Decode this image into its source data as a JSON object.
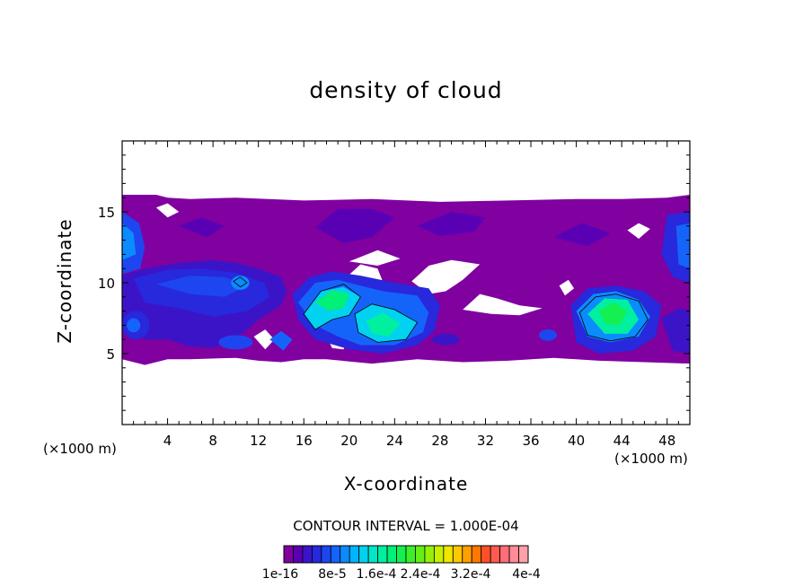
{
  "chart_data": {
    "type": "heatmap",
    "title": "density of cloud",
    "xlabel": "X-coordinate",
    "ylabel": "Z-coordinate",
    "x_unit": "(×1000 m)",
    "xlim": [
      0,
      50
    ],
    "ylim": [
      0,
      20
    ],
    "x_ticks": [
      4,
      8,
      12,
      16,
      20,
      24,
      28,
      32,
      36,
      40,
      44,
      48
    ],
    "y_ticks": [
      5,
      10,
      15
    ],
    "contour_interval_text": "CONTOUR INTERVAL = 1.000E-04",
    "colorbar": {
      "labels": [
        "1e-16",
        "8e-5",
        "1.6e-4",
        "2.4e-4",
        "3.2e-4",
        "4e-4"
      ],
      "range": [
        1e-16,
        0.0004
      ],
      "colors": [
        "#8000a0",
        "#5a00b4",
        "#3c14c8",
        "#2828dc",
        "#1e46f0",
        "#1464fa",
        "#0a8cff",
        "#00b4ff",
        "#00d2f0",
        "#00e6c8",
        "#00f0a0",
        "#00f078",
        "#14f050",
        "#3cf028",
        "#64f014",
        "#96f00a",
        "#c8f000",
        "#f0e600",
        "#ffc800",
        "#ffa000",
        "#ff7800",
        "#ff5028",
        "#ff5a50",
        "#ff6e78",
        "#ff8c96",
        "#ffa0aa"
      ]
    },
    "note_visible": "Cloud density field, non-zero roughly between Z=4 and Z=16 km, maxima near X=18, X=22 and X=43"
  }
}
